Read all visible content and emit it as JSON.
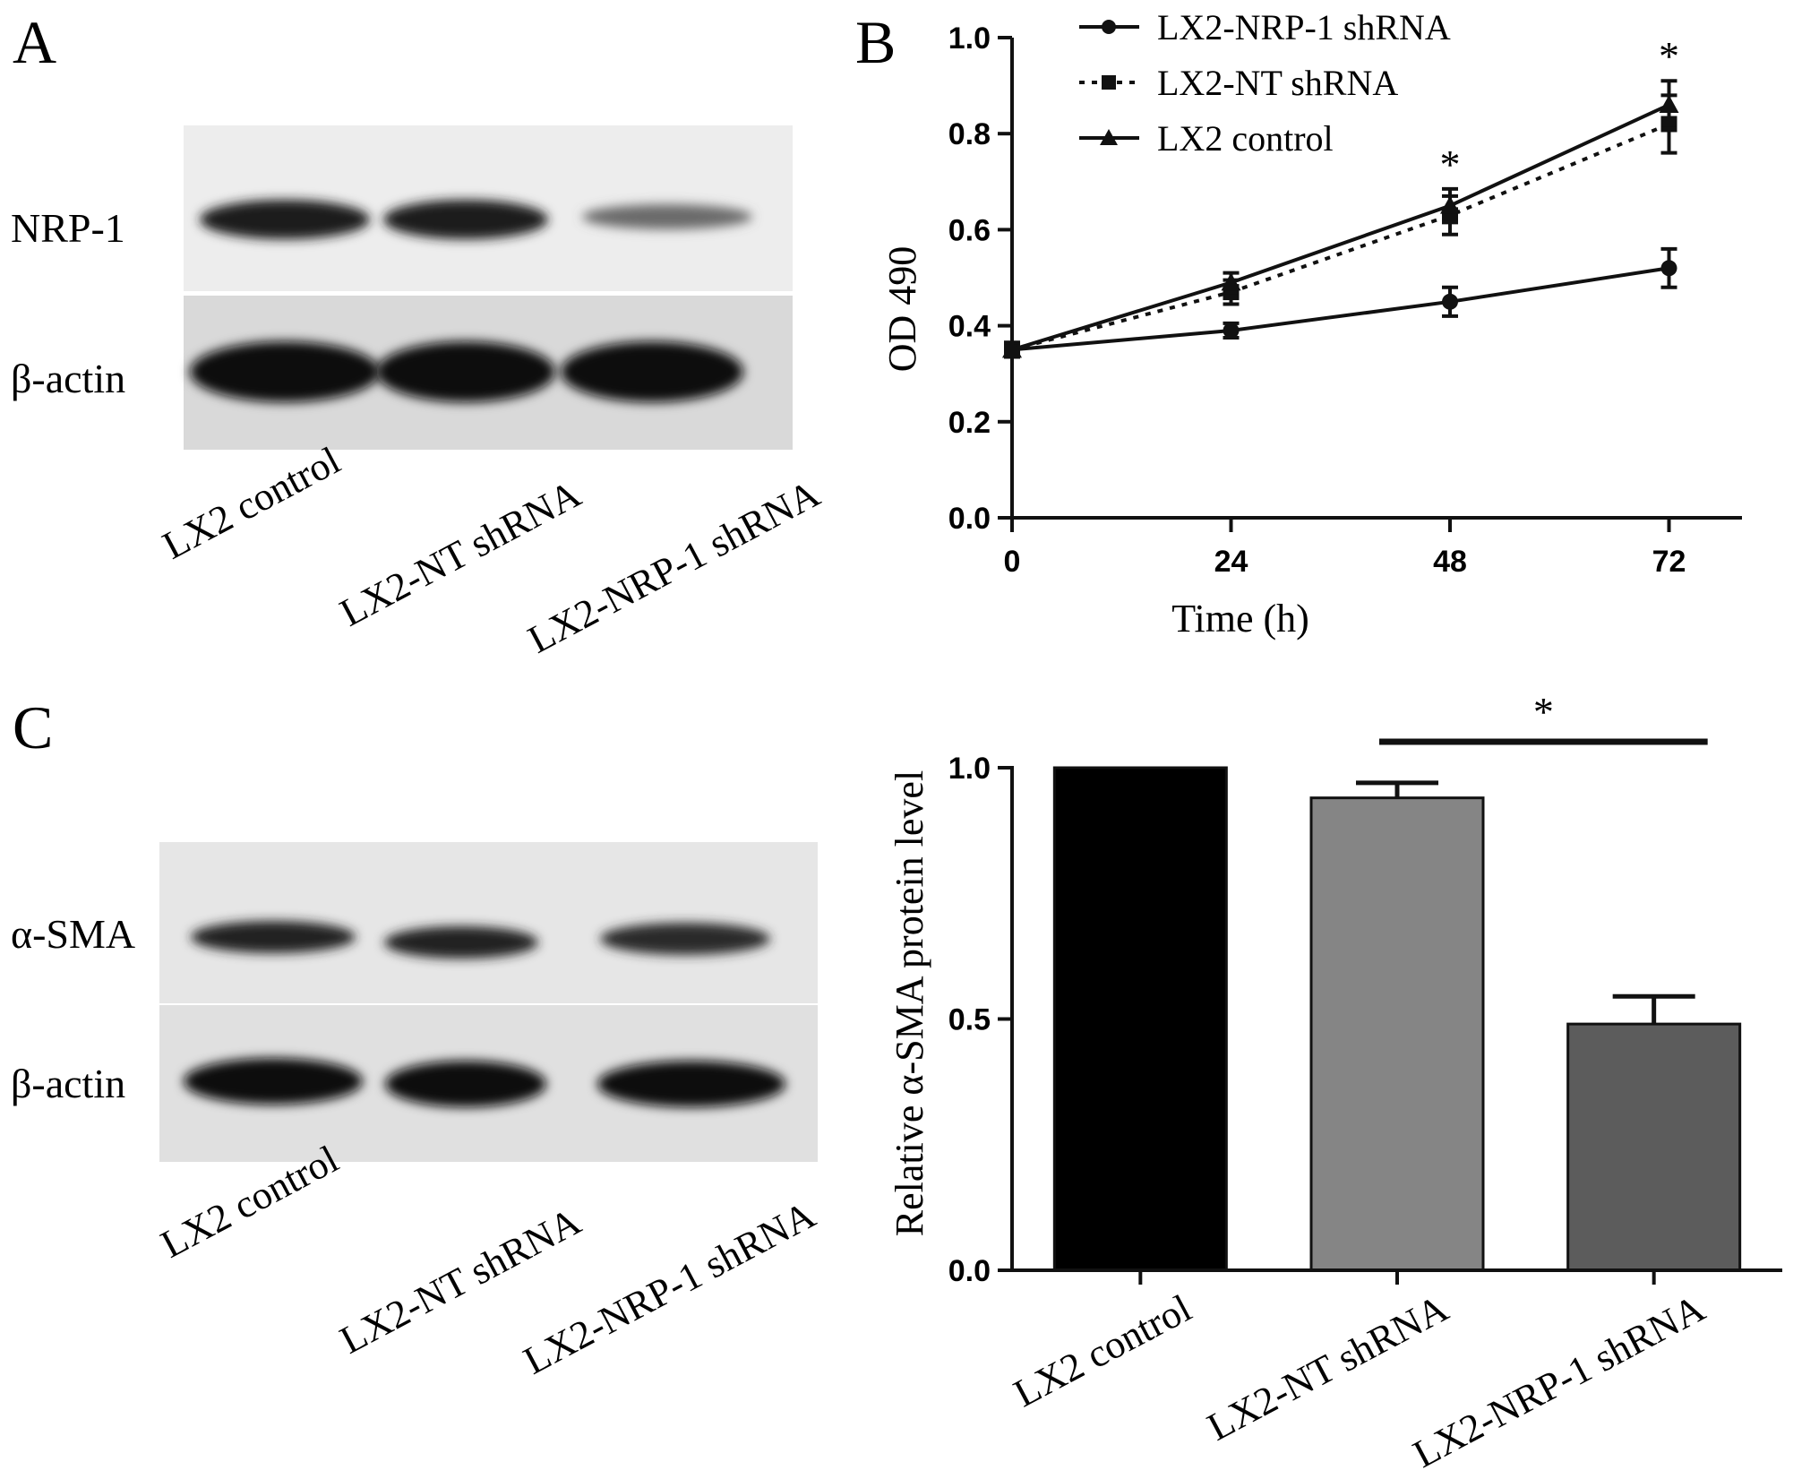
{
  "panels": {
    "a": "A",
    "b": "B",
    "c": "C"
  },
  "blots": {
    "a": {
      "rows": [
        "NRP-1",
        "β-actin"
      ],
      "lanes": [
        "LX2  control",
        "LX2-NT shRNA",
        "LX2-NRP-1 shRNA"
      ]
    },
    "c": {
      "rows": [
        "α-SMA",
        "β-actin"
      ],
      "lanes": [
        "LX2 control",
        "LX2-NT shRNA",
        "LX2-NRP-1 shRNA"
      ]
    }
  },
  "chart_data": [
    {
      "type": "line",
      "panel": "B",
      "xlabel": "Time (h)",
      "ylabel": "OD 490",
      "x": [
        0,
        24,
        48,
        72
      ],
      "x_ticks": [
        "0",
        "24",
        "48",
        "72"
      ],
      "y_ticks": [
        "0.0",
        "0.2",
        "0.4",
        "0.6",
        "0.8",
        "1.0"
      ],
      "xlim": [
        0,
        80
      ],
      "ylim": [
        0,
        1.0
      ],
      "legend_position": "top-left",
      "series": [
        {
          "name": "LX2-NRP-1 shRNA",
          "marker": "circle",
          "style": "solid",
          "values": [
            0.35,
            0.39,
            0.45,
            0.52
          ],
          "errors": [
            0.015,
            0.015,
            0.03,
            0.04
          ]
        },
        {
          "name": "LX2-NT shRNA",
          "marker": "square",
          "style": "dotted",
          "values": [
            0.35,
            0.47,
            0.63,
            0.82
          ],
          "errors": [
            0.015,
            0.025,
            0.04,
            0.06
          ]
        },
        {
          "name": "LX2 control",
          "marker": "triangle",
          "style": "solid",
          "values": [
            0.35,
            0.49,
            0.65,
            0.86
          ],
          "errors": [
            0.015,
            0.02,
            0.035,
            0.05
          ]
        }
      ],
      "annotations": [
        {
          "text": "*",
          "x": 48
        },
        {
          "text": "*",
          "x": 72
        }
      ]
    },
    {
      "type": "bar",
      "panel": "C",
      "ylabel": "Relative α-SMA protein level",
      "categories": [
        "LX2 control",
        "LX2-NT shRNA",
        "LX2-NRP-1 shRNA"
      ],
      "values": [
        1.0,
        0.94,
        0.49
      ],
      "errors": [
        0,
        0.03,
        0.055
      ],
      "colors": [
        "#000000",
        "#858585",
        "#5c5c5c"
      ],
      "y_ticks": [
        "0.0",
        "0.5",
        "1.0"
      ],
      "ylim": [
        0,
        1.0
      ],
      "significance": {
        "text": "*",
        "from": 1,
        "to": 2
      }
    }
  ]
}
